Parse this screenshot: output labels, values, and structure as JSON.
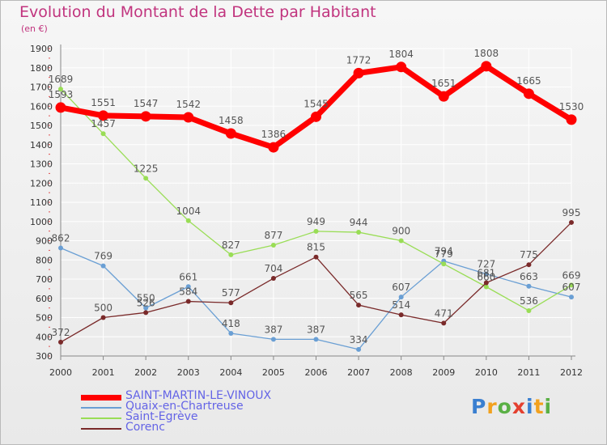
{
  "header": {
    "title": "Evolution du Montant de la Dette par Habitant",
    "subtitle": "(en €)"
  },
  "logo": {
    "text": "Proxiti"
  },
  "colors": {
    "title": "#c1347e",
    "legend_text": "#6464e6",
    "axis": "#888888",
    "grid": "#ffffff",
    "label": "#555555"
  },
  "chart_data": {
    "type": "line",
    "x": [
      "2000",
      "2001",
      "2002",
      "2003",
      "2004",
      "2005",
      "2006",
      "2007",
      "2008",
      "2009",
      "2010",
      "2011",
      "2012"
    ],
    "ylim": [
      300,
      1900
    ],
    "yticks": [
      "300",
      "400",
      "500",
      "600",
      "700",
      "800",
      "900",
      "1000",
      "1100",
      "1200",
      "1300",
      "1400",
      "1500",
      "1600",
      "1700",
      "1800",
      "1900"
    ],
    "grid": true,
    "legend_position": "bottom-left",
    "series": [
      {
        "name": "SAINT-MARTIN-LE-VINOUX",
        "color": "#ff0000",
        "values": [
          1593,
          1551,
          1547,
          1542,
          1458,
          1386,
          1545,
          1772,
          1804,
          1651,
          1808,
          1665,
          1530
        ]
      },
      {
        "name": "Quaix-en-Chartreuse",
        "color": "#6a9fd4",
        "values": [
          862,
          769,
          550,
          661,
          418,
          387,
          387,
          334,
          607,
          794,
          727,
          663,
          607
        ]
      },
      {
        "name": "Saint-Egrève",
        "color": "#99dd55",
        "values": [
          1689,
          1457,
          1225,
          1004,
          827,
          877,
          949,
          944,
          900,
          779,
          660,
          536,
          669
        ]
      },
      {
        "name": "Corenc",
        "color": "#7a2a2a",
        "values": [
          372,
          500,
          526,
          584,
          577,
          704,
          815,
          565,
          514,
          471,
          681,
          775,
          995
        ]
      }
    ]
  }
}
